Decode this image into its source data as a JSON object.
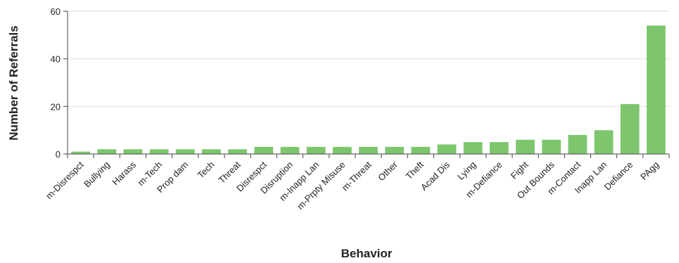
{
  "chart_data": {
    "type": "bar",
    "xlabel": "Behavior",
    "ylabel": "Number of Referrals",
    "ylim": [
      0,
      60
    ],
    "yticks": [
      0,
      20,
      40,
      60
    ],
    "grid": true,
    "bar_color": "#7dc66e",
    "categories": [
      "m-Disrespct",
      "Bullying",
      "Harass",
      "m-Tech",
      "Prop dam",
      "Tech",
      "Threat",
      "Disrespct",
      "Disruption",
      "m-Inapp Lan",
      "m-Prpty Misuse",
      "m-Threat",
      "Other",
      "Theft",
      "Acad Dis",
      "Lying",
      "m-Defiance",
      "Fight",
      "Out Bounds",
      "m-Contact",
      "Inapp Lan",
      "Defiance",
      "PAgg"
    ],
    "values": [
      1,
      2,
      2,
      2,
      2,
      2,
      2,
      3,
      3,
      3,
      3,
      3,
      3,
      3,
      4,
      5,
      5,
      6,
      6,
      8,
      10,
      21,
      54
    ]
  }
}
